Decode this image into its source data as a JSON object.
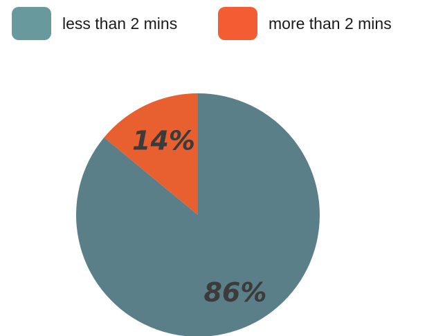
{
  "chart_data": {
    "type": "pie",
    "categories": [
      "less than 2 mins",
      "more than 2 mins"
    ],
    "values": [
      86,
      14
    ],
    "value_labels": [
      "86%",
      "14%"
    ],
    "colors": [
      "#5a7f88",
      "#e8602f"
    ],
    "legend_colors": [
      "#689a9d",
      "#f45d33"
    ],
    "legend_position": "top",
    "start_angle": "12 o'clock, clockwise"
  }
}
